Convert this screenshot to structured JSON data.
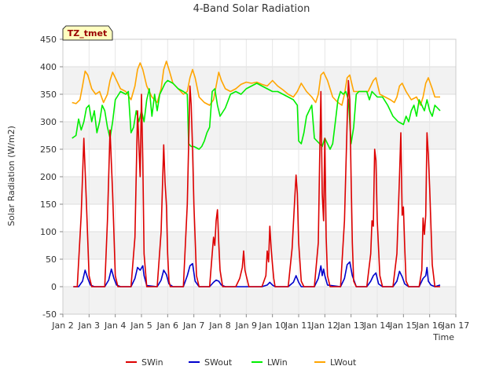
{
  "chart_data": {
    "type": "line",
    "title": "4-Band Solar Radiation",
    "xlabel": "Time",
    "ylabel": "Solar Radiation (W/m2)",
    "badge": "TZ_tmet",
    "xlim": [
      2,
      17
    ],
    "ylim": [
      -50,
      450
    ],
    "xticks": [
      2,
      3,
      4,
      5,
      6,
      7,
      8,
      9,
      10,
      11,
      12,
      13,
      14,
      15,
      16,
      17
    ],
    "xtick_labels": [
      "Jan 2",
      "Jan 3",
      "Jan 4",
      "Jan 5",
      "Jan 6",
      "Jan 7",
      "Jan 8",
      "Jan 9",
      "Jan 10",
      "Jan 11",
      "Jan 12",
      "Jan 13",
      "Jan 14",
      "Jan 15",
      "Jan 16",
      "Jan 17"
    ],
    "yticks": [
      -50,
      0,
      50,
      100,
      150,
      200,
      250,
      300,
      350,
      400,
      450
    ],
    "ytick_labels": [
      "-50",
      "0",
      "50",
      "100",
      "150",
      "200",
      "250",
      "300",
      "350",
      "400",
      "450"
    ],
    "grid": true,
    "legend_position": "bottom",
    "series": [
      {
        "name": "SWin",
        "color": "#dd0000",
        "x": [
          2.4,
          2.55,
          2.7,
          2.8,
          2.9,
          3.0,
          3.1,
          3.2,
          3.4,
          3.6,
          3.7,
          3.8,
          3.9,
          4.0,
          4.1,
          4.2,
          4.4,
          4.6,
          4.75,
          4.85,
          4.95,
          5.0,
          5.05,
          5.1,
          5.2,
          5.4,
          5.6,
          5.75,
          5.85,
          5.9,
          5.95,
          6.0,
          6.05,
          6.1,
          6.2,
          6.4,
          6.6,
          6.75,
          6.85,
          6.9,
          6.95,
          7.0,
          7.1,
          7.2,
          7.4,
          7.6,
          7.7,
          7.75,
          7.8,
          7.85,
          7.9,
          7.95,
          8.0,
          8.1,
          8.2,
          8.4,
          8.6,
          8.75,
          8.85,
          8.9,
          8.95,
          9.0,
          9.1,
          9.2,
          9.4,
          9.6,
          9.75,
          9.8,
          9.85,
          9.9,
          9.95,
          10.0,
          10.05,
          10.1,
          10.2,
          10.4,
          10.6,
          10.75,
          10.85,
          10.9,
          10.95,
          11.0,
          11.1,
          11.2,
          11.4,
          11.6,
          11.75,
          11.8,
          11.85,
          11.9,
          11.95,
          12.0,
          12.05,
          12.1,
          12.2,
          12.4,
          12.6,
          12.75,
          12.85,
          12.9,
          12.95,
          13.0,
          13.05,
          13.1,
          13.2,
          13.4,
          13.6,
          13.75,
          13.8,
          13.85,
          13.9,
          13.95,
          14.0,
          14.1,
          14.2,
          14.4,
          14.6,
          14.75,
          14.85,
          14.9,
          14.95,
          15.0,
          15.05,
          15.1,
          15.2,
          15.4,
          15.6,
          15.7,
          15.75,
          15.8,
          15.85,
          15.9,
          15.95,
          16.0,
          16.1,
          16.2,
          16.4
        ],
        "y": [
          0,
          0,
          130,
          270,
          150,
          20,
          0,
          0,
          0,
          0,
          120,
          285,
          170,
          20,
          0,
          0,
          0,
          0,
          90,
          320,
          200,
          350,
          230,
          60,
          0,
          0,
          0,
          100,
          258,
          190,
          150,
          60,
          10,
          0,
          0,
          0,
          0,
          150,
          365,
          330,
          250,
          150,
          20,
          0,
          0,
          0,
          60,
          90,
          75,
          120,
          140,
          80,
          30,
          0,
          0,
          0,
          0,
          15,
          35,
          65,
          30,
          20,
          0,
          0,
          0,
          0,
          20,
          65,
          45,
          110,
          70,
          40,
          15,
          0,
          0,
          0,
          0,
          70,
          160,
          203,
          170,
          80,
          10,
          0,
          0,
          0,
          80,
          230,
          355,
          170,
          120,
          270,
          90,
          20,
          0,
          0,
          0,
          120,
          300,
          375,
          340,
          200,
          80,
          10,
          0,
          0,
          0,
          60,
          120,
          110,
          250,
          230,
          120,
          20,
          0,
          0,
          0,
          60,
          200,
          280,
          130,
          145,
          70,
          10,
          0,
          0,
          0,
          30,
          125,
          95,
          130,
          280,
          240,
          180,
          40,
          0,
          0
        ]
      },
      {
        "name": "SWout",
        "color": "#0000cc",
        "x": [
          2.4,
          2.6,
          2.75,
          2.85,
          2.95,
          3.05,
          3.2,
          3.6,
          3.75,
          3.85,
          3.95,
          4.05,
          4.2,
          4.6,
          4.75,
          4.85,
          4.95,
          5.05,
          5.1,
          5.2,
          5.6,
          5.75,
          5.85,
          5.95,
          6.05,
          6.2,
          6.6,
          6.75,
          6.85,
          6.95,
          7.05,
          7.2,
          7.6,
          7.75,
          7.85,
          7.95,
          8.05,
          8.2,
          9.6,
          9.8,
          9.9,
          10.0,
          10.1,
          10.6,
          10.8,
          10.9,
          11.0,
          11.1,
          11.6,
          11.75,
          11.85,
          11.9,
          11.95,
          12.0,
          12.1,
          12.6,
          12.75,
          12.85,
          12.95,
          13.05,
          13.2,
          13.6,
          13.75,
          13.85,
          13.95,
          14.05,
          14.2,
          14.6,
          14.75,
          14.85,
          14.95,
          15.05,
          15.2,
          15.6,
          15.75,
          15.85,
          15.9,
          15.95,
          16.05,
          16.2,
          16.4
        ],
        "y": [
          0,
          0,
          10,
          30,
          15,
          3,
          0,
          0,
          12,
          32,
          15,
          3,
          0,
          0,
          15,
          35,
          30,
          38,
          20,
          2,
          0,
          12,
          30,
          22,
          5,
          0,
          0,
          20,
          38,
          42,
          10,
          0,
          0,
          8,
          12,
          10,
          3,
          0,
          0,
          3,
          8,
          3,
          0,
          0,
          8,
          20,
          8,
          0,
          0,
          15,
          38,
          20,
          32,
          20,
          3,
          0,
          15,
          40,
          45,
          20,
          0,
          0,
          10,
          20,
          25,
          5,
          0,
          0,
          10,
          28,
          18,
          5,
          0,
          0,
          15,
          20,
          35,
          10,
          3,
          0,
          3
        ]
      },
      {
        "name": "LWin",
        "color": "#00ee00",
        "x": [
          2.35,
          2.5,
          2.6,
          2.7,
          2.8,
          2.9,
          3.0,
          3.1,
          3.2,
          3.3,
          3.4,
          3.5,
          3.6,
          3.7,
          3.8,
          3.9,
          4.0,
          4.2,
          4.4,
          4.5,
          4.6,
          4.7,
          4.8,
          4.9,
          5.0,
          5.1,
          5.2,
          5.3,
          5.4,
          5.5,
          5.6,
          5.7,
          5.8,
          5.9,
          6.0,
          6.2,
          6.4,
          6.6,
          6.75,
          6.8,
          6.9,
          7.0,
          7.2,
          7.3,
          7.4,
          7.5,
          7.6,
          7.7,
          7.8,
          7.9,
          8.0,
          8.2,
          8.4,
          8.6,
          8.8,
          9.0,
          9.2,
          9.4,
          9.6,
          9.8,
          10.0,
          10.2,
          10.4,
          10.6,
          10.8,
          10.95,
          11.0,
          11.1,
          11.2,
          11.3,
          11.4,
          11.5,
          11.6,
          11.7,
          11.8,
          11.9,
          12.0,
          12.1,
          12.2,
          12.3,
          12.4,
          12.5,
          12.6,
          12.7,
          12.8,
          12.9,
          13.0,
          13.1,
          13.2,
          13.3,
          13.4,
          13.6,
          13.7,
          13.8,
          13.9,
          14.0,
          14.2,
          14.4,
          14.6,
          14.8,
          15.0,
          15.1,
          15.2,
          15.3,
          15.4,
          15.5,
          15.6,
          15.7,
          15.8,
          15.9,
          16.0,
          16.1,
          16.2,
          16.4
        ],
        "y": [
          270,
          275,
          305,
          285,
          300,
          325,
          330,
          300,
          320,
          280,
          300,
          330,
          320,
          290,
          270,
          300,
          340,
          355,
          350,
          355,
          280,
          290,
          320,
          300,
          320,
          300,
          340,
          360,
          310,
          350,
          320,
          350,
          360,
          370,
          375,
          370,
          360,
          355,
          350,
          260,
          255,
          255,
          250,
          255,
          265,
          280,
          290,
          355,
          360,
          330,
          310,
          325,
          350,
          355,
          350,
          360,
          365,
          370,
          365,
          360,
          355,
          355,
          350,
          345,
          340,
          330,
          265,
          260,
          280,
          310,
          320,
          330,
          270,
          265,
          260,
          255,
          270,
          260,
          250,
          260,
          300,
          340,
          355,
          350,
          355,
          340,
          260,
          290,
          350,
          355,
          355,
          355,
          340,
          355,
          350,
          345,
          345,
          330,
          310,
          300,
          295,
          310,
          300,
          320,
          330,
          310,
          340,
          330,
          320,
          340,
          320,
          310,
          330,
          320
        ]
      },
      {
        "name": "LWout",
        "color": "#ffa500",
        "x": [
          2.35,
          2.5,
          2.65,
          2.75,
          2.85,
          2.95,
          3.1,
          3.25,
          3.4,
          3.55,
          3.7,
          3.8,
          3.9,
          4.0,
          4.2,
          4.4,
          4.6,
          4.75,
          4.85,
          4.95,
          5.05,
          5.2,
          5.4,
          5.6,
          5.75,
          5.85,
          5.95,
          6.05,
          6.2,
          6.4,
          6.6,
          6.75,
          6.85,
          6.95,
          7.05,
          7.2,
          7.4,
          7.6,
          7.75,
          7.85,
          7.95,
          8.05,
          8.2,
          8.4,
          8.6,
          8.8,
          9.0,
          9.2,
          9.4,
          9.6,
          9.8,
          10.0,
          10.2,
          10.4,
          10.6,
          10.8,
          10.95,
          11.1,
          11.3,
          11.5,
          11.65,
          11.75,
          11.85,
          11.95,
          12.1,
          12.3,
          12.5,
          12.65,
          12.75,
          12.85,
          12.95,
          13.1,
          13.3,
          13.5,
          13.65,
          13.75,
          13.85,
          13.95,
          14.1,
          14.3,
          14.5,
          14.65,
          14.75,
          14.85,
          14.95,
          15.1,
          15.3,
          15.5,
          15.65,
          15.75,
          15.85,
          15.95,
          16.1,
          16.2,
          16.4
        ],
        "y": [
          335,
          333,
          340,
          365,
          392,
          385,
          360,
          350,
          355,
          335,
          350,
          375,
          390,
          380,
          360,
          355,
          340,
          365,
          395,
          407,
          395,
          365,
          345,
          335,
          360,
          395,
          410,
          395,
          370,
          360,
          350,
          355,
          380,
          395,
          380,
          345,
          335,
          330,
          340,
          365,
          390,
          375,
          360,
          355,
          360,
          368,
          372,
          370,
          372,
          368,
          365,
          375,
          365,
          358,
          350,
          345,
          355,
          370,
          355,
          345,
          335,
          350,
          385,
          390,
          375,
          345,
          335,
          330,
          350,
          380,
          385,
          355,
          355,
          355,
          355,
          365,
          375,
          380,
          350,
          345,
          340,
          335,
          345,
          365,
          370,
          355,
          340,
          345,
          330,
          345,
          370,
          380,
          360,
          345,
          345
        ]
      }
    ]
  }
}
